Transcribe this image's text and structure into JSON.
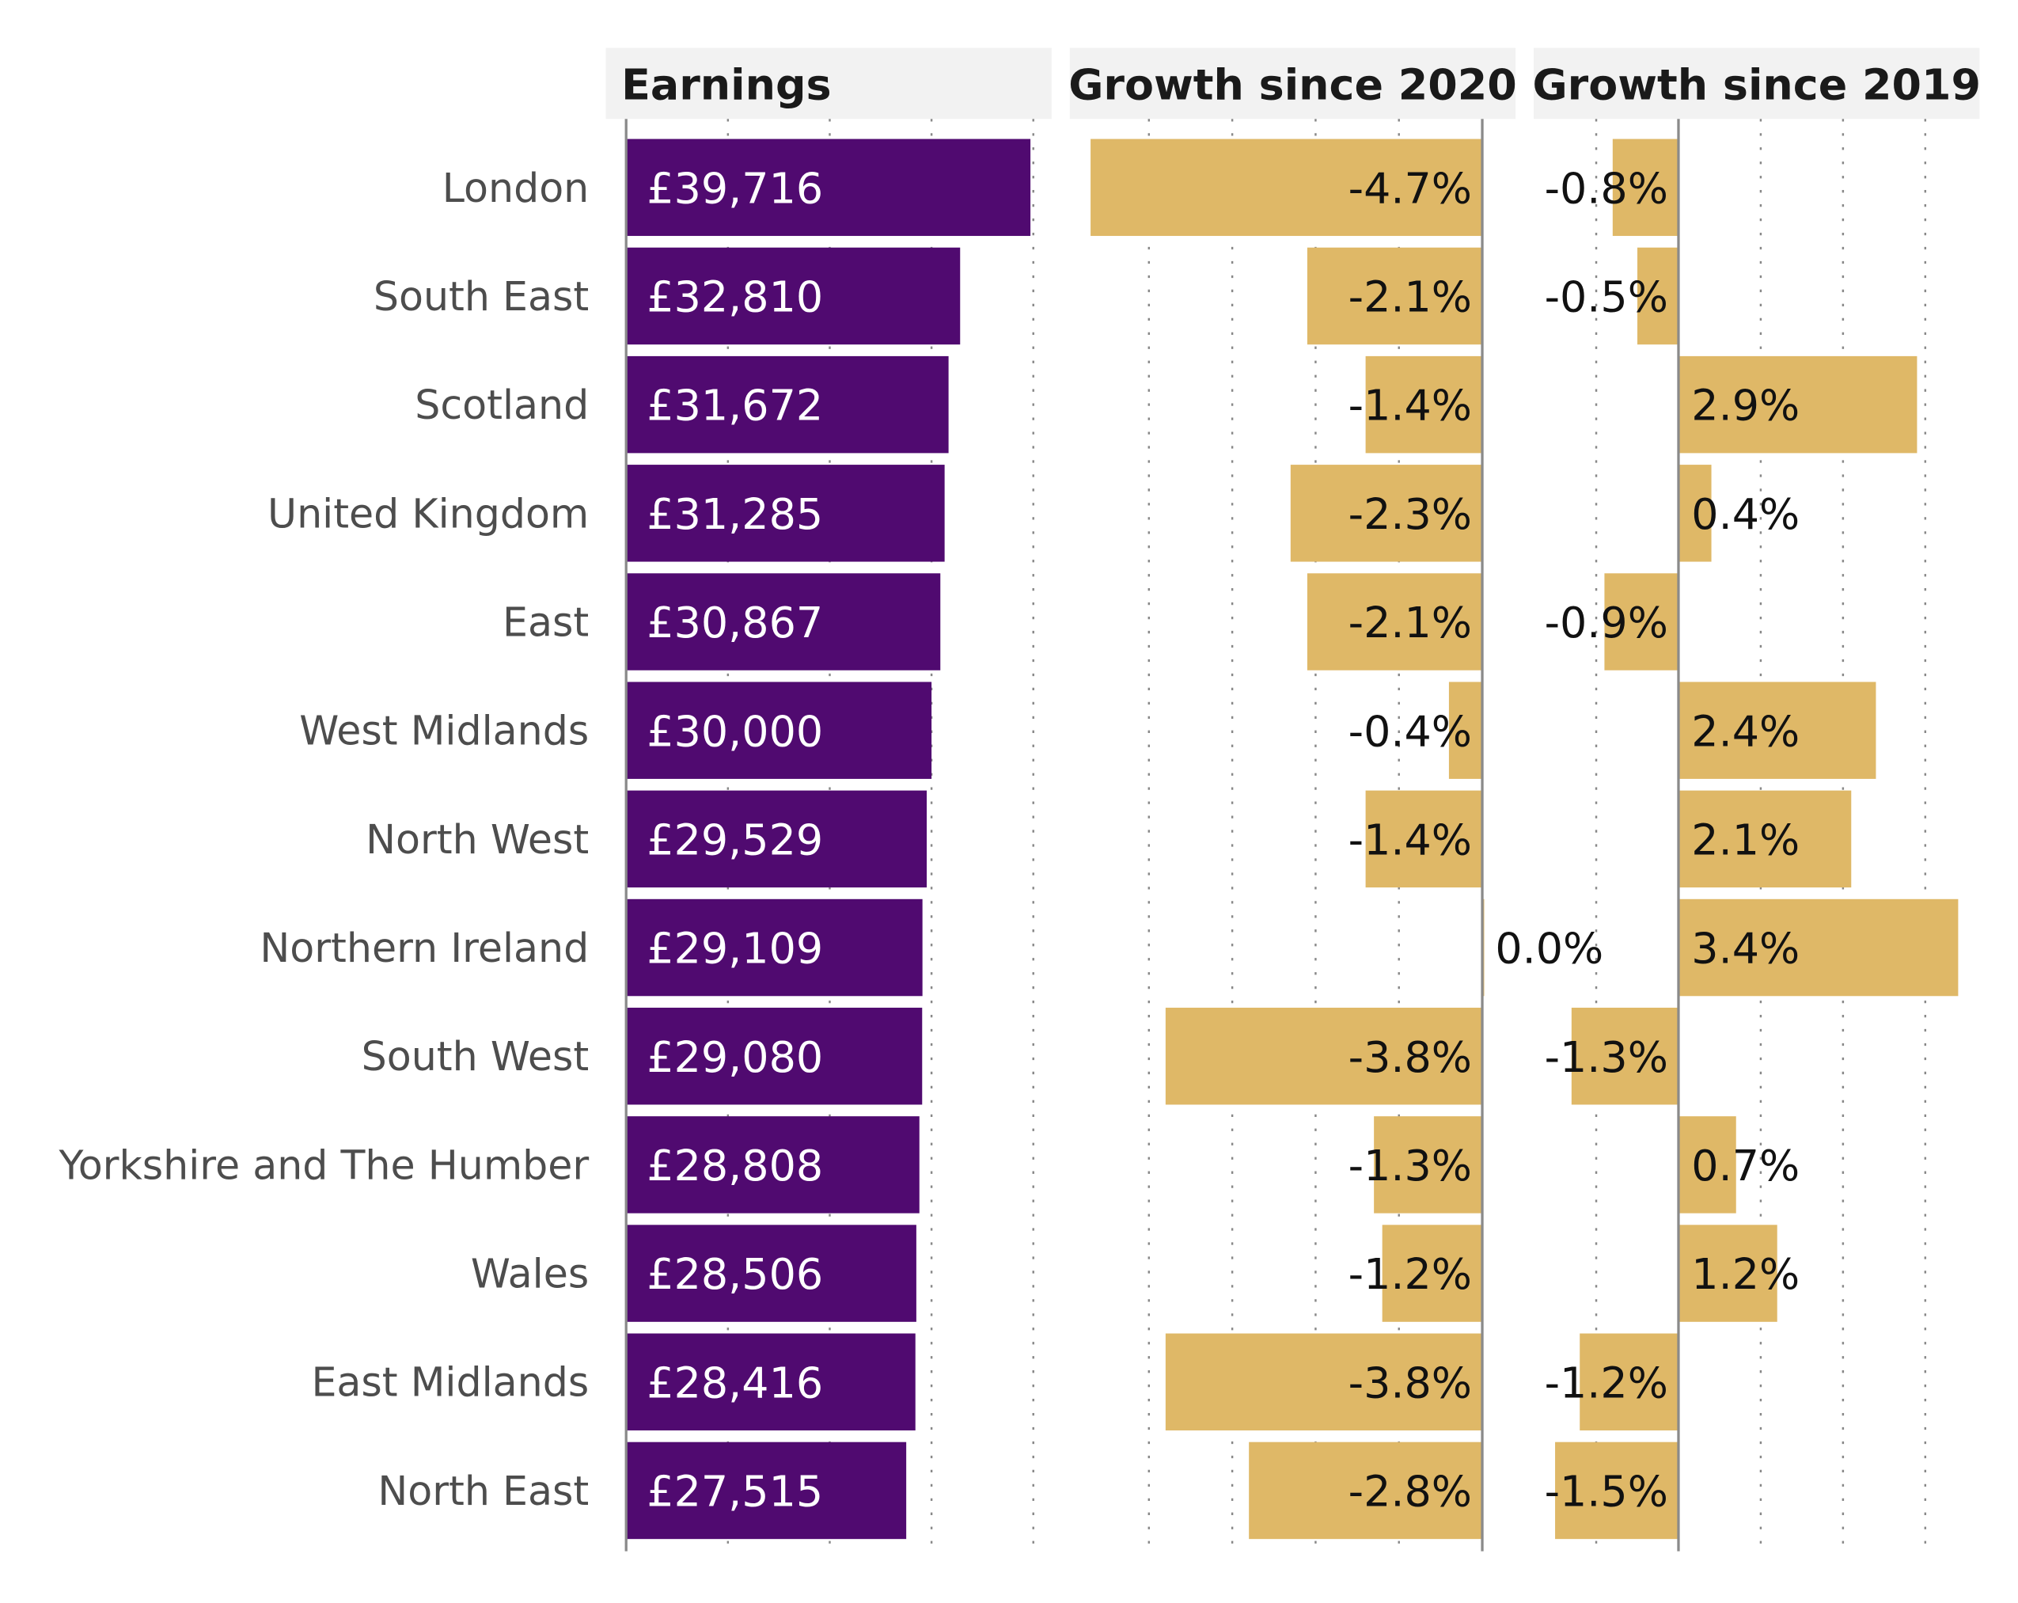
{
  "chart_data": [
    {
      "type": "bar",
      "orientation": "horizontal",
      "title": "Earnings",
      "categories": [
        "London",
        "South East",
        "Scotland",
        "United Kingdom",
        "East",
        "West Midlands",
        "North West",
        "Northern Ireland",
        "South West",
        "Yorkshire and The Humber",
        "Wales",
        "East Midlands",
        "North East"
      ],
      "values": [
        39716,
        32810,
        31672,
        31285,
        30867,
        30000,
        29529,
        29109,
        29080,
        28808,
        28506,
        28416,
        27515
      ],
      "labels": [
        "£39,716",
        "£32,810",
        "£31,672",
        "£31,285",
        "£30,867",
        "£30,000",
        "£29,529",
        "£29,109",
        "£29,080",
        "£28,808",
        "£28,506",
        "£28,416",
        "£27,515"
      ],
      "xlim": [
        -2000,
        41800
      ],
      "gridlines": [
        0,
        10000,
        20000,
        30000,
        40000
      ],
      "color": "#500a70",
      "grid": "vertical dotted"
    },
    {
      "type": "bar",
      "orientation": "horizontal",
      "title": "Growth since 2020",
      "values": [
        -4.7,
        -2.1,
        -1.4,
        -2.3,
        -2.1,
        -0.4,
        -1.4,
        0.0,
        -3.8,
        -1.3,
        -1.2,
        -3.8,
        -2.8
      ],
      "labels": [
        "-4.7%",
        "-2.1%",
        "-1.4%",
        "-2.3%",
        "-2.1%",
        "-0.4%",
        "-1.4%",
        "0.0%",
        "-3.8%",
        "-1.3%",
        "-1.2%",
        "-3.8%",
        "-2.8%"
      ],
      "xlim": [
        -4.95,
        0.4
      ],
      "gridlines": [
        -4,
        -3,
        -2,
        -1,
        0
      ],
      "color": "#dfb867",
      "grid": "vertical dotted"
    },
    {
      "type": "bar",
      "orientation": "horizontal",
      "title": "Growth since 2019",
      "values": [
        -0.8,
        -0.5,
        2.9,
        0.4,
        -0.9,
        2.4,
        2.1,
        3.4,
        -1.3,
        0.7,
        1.2,
        -1.2,
        -1.5
      ],
      "labels": [
        "-0.8%",
        "-0.5%",
        "2.9%",
        "0.4%",
        "-0.9%",
        "2.4%",
        "2.1%",
        "3.4%",
        "-1.3%",
        "0.7%",
        "1.2%",
        "-1.2%",
        "-1.5%"
      ],
      "xlim": [
        -1.76,
        3.66
      ],
      "gridlines": [
        -1,
        0,
        1,
        2,
        3
      ],
      "color": "#dfb867",
      "grid": "vertical dotted"
    }
  ]
}
